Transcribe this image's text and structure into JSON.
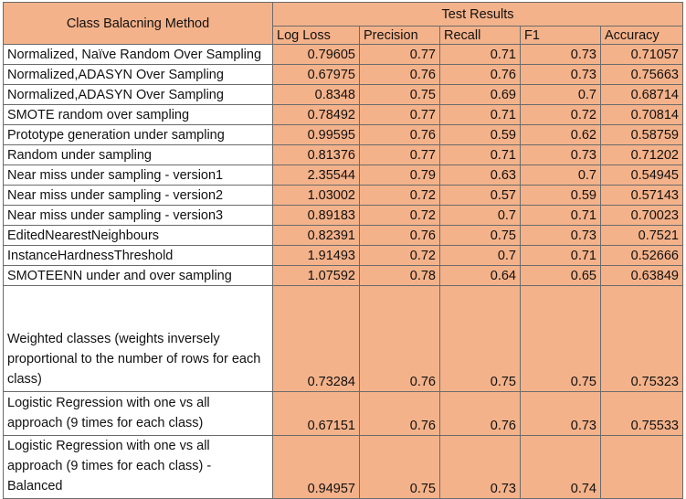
{
  "table": {
    "corner_header": "Class Balacning Method",
    "group_header": "Test Results",
    "columns": [
      "Log Loss",
      "Precision",
      "Recall",
      "F1",
      "Accuracy"
    ],
    "rows": [
      {
        "method": "Normalized, Naïve Random Over Sampling",
        "values": [
          "0.79605",
          "0.77",
          "0.71",
          "0.73",
          "0.71057"
        ]
      },
      {
        "method": "Normalized,ADASYN Over Sampling",
        "values": [
          "0.67975",
          "0.76",
          "0.76",
          "0.73",
          "0.75663"
        ]
      },
      {
        "method": "Normalized,ADASYN Over Sampling",
        "values": [
          "0.8348",
          "0.75",
          "0.69",
          "0.7",
          "0.68714"
        ]
      },
      {
        "method": "SMOTE random over sampling",
        "values": [
          "0.78492",
          "0.77",
          "0.71",
          "0.72",
          "0.70814"
        ]
      },
      {
        "method": "Prototype generation under sampling",
        "values": [
          "0.99595",
          "0.76",
          "0.59",
          "0.62",
          "0.58759"
        ]
      },
      {
        "method": "Random under sampling",
        "values": [
          "0.81376",
          "0.77",
          "0.71",
          "0.73",
          "0.71202"
        ]
      },
      {
        "method": "Near miss under sampling - version1",
        "values": [
          "2.35544",
          "0.79",
          "0.63",
          "0.7",
          "0.54945"
        ]
      },
      {
        "method": "Near miss under sampling - version2",
        "values": [
          "1.03002",
          "0.72",
          "0.57",
          "0.59",
          "0.57143"
        ]
      },
      {
        "method": "Near miss under sampling - version3",
        "values": [
          "0.89183",
          "0.72",
          "0.7",
          "0.71",
          "0.70023"
        ]
      },
      {
        "method": "EditedNearestNeighbours",
        "values": [
          "0.82391",
          "0.76",
          "0.75",
          "0.73",
          "0.7521"
        ]
      },
      {
        "method": "InstanceHardnessThreshold",
        "values": [
          "1.91493",
          "0.72",
          "0.7",
          "0.71",
          "0.52666"
        ]
      },
      {
        "method": "SMOTEENN under and over sampling",
        "values": [
          "1.07592",
          "0.78",
          "0.64",
          "0.65",
          "0.63849"
        ]
      },
      {
        "method": "Weighted classes (weights inversely proportional to the number of rows for each class)",
        "values": [
          "0.73284",
          "0.76",
          "0.75",
          "0.75",
          "0.75323"
        ]
      },
      {
        "method": "Logistic Regression with one vs all approach (9 times for each class)",
        "values": [
          "0.67151",
          "0.76",
          "0.76",
          "0.73",
          "0.75533"
        ]
      },
      {
        "method": "Logistic Regression with one vs all approach (9 times for each class) - Balanced",
        "values": [
          "0.94957",
          "0.75",
          "0.73",
          "0.74",
          ""
        ]
      }
    ]
  }
}
